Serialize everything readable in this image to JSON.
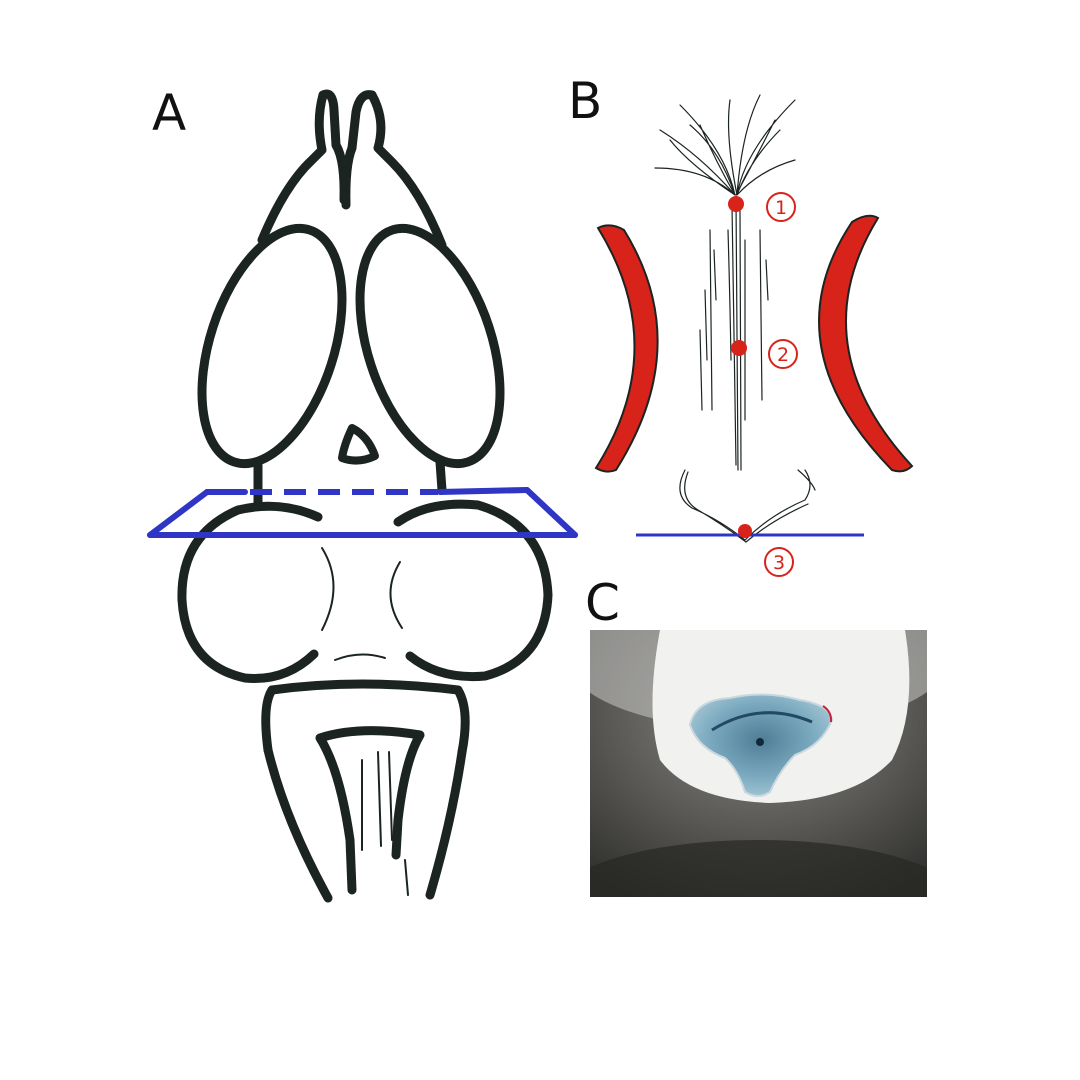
{
  "panels": {
    "a": {
      "letter": "A"
    },
    "b": {
      "letter": "B",
      "markers": [
        {
          "label": "1"
        },
        {
          "label": "2"
        },
        {
          "label": "3"
        }
      ]
    },
    "c": {
      "letter": "C"
    }
  },
  "colors": {
    "outline": "#1c2422",
    "cut_plane": "#2f35c4",
    "highlight": "#d8231a",
    "stain": "#6f9cb4"
  }
}
